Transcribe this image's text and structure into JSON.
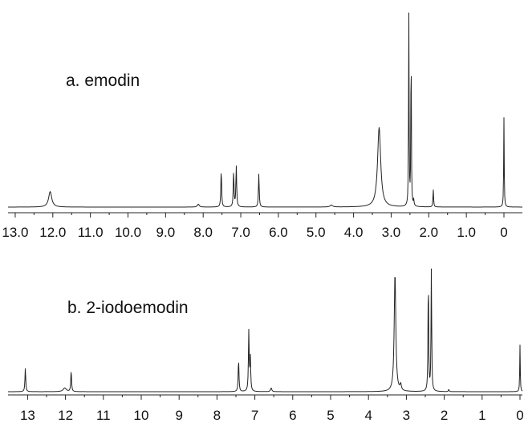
{
  "chart_data": [
    {
      "type": "line",
      "title": "a. emodin",
      "xlabel": "",
      "ylabel": "",
      "x_unit": "ppm",
      "xlim": [
        13.0,
        0.0
      ],
      "x_reversed": true,
      "tick_values": [
        13.0,
        12.0,
        11.0,
        10.0,
        9.0,
        8.0,
        7.0,
        6.0,
        5.0,
        4.0,
        3.0,
        2.0,
        1.0,
        0.0
      ],
      "tick_labels": [
        "13.0",
        "12.0",
        "11.0",
        "10.0",
        "9.0",
        "8.0",
        "7.0",
        "6.0",
        "5.0",
        "4.0",
        "3.0",
        "2.0",
        "1.0",
        "0"
      ],
      "grid": false,
      "ylim": [
        0,
        1.0
      ],
      "peaks": [
        {
          "x": 12.07,
          "y": 0.08,
          "width": 0.05
        },
        {
          "x": 8.13,
          "y": 0.015,
          "width": 0.03
        },
        {
          "x": 7.52,
          "y": 0.19,
          "width": 0.012
        },
        {
          "x": 7.19,
          "y": 0.18,
          "width": 0.012
        },
        {
          "x": 7.12,
          "y": 0.21,
          "width": 0.012
        },
        {
          "x": 6.52,
          "y": 0.17,
          "width": 0.012
        },
        {
          "x": 4.59,
          "y": 0.01,
          "width": 0.04
        },
        {
          "x": 3.32,
          "y": 0.41,
          "width": 0.05
        },
        {
          "x": 2.53,
          "y": 1.0,
          "width": 0.008
        },
        {
          "x": 2.47,
          "y": 0.88,
          "width": 0.008
        },
        {
          "x": 2.4,
          "y": 0.03,
          "width": 0.01
        },
        {
          "x": 1.88,
          "y": 0.09,
          "width": 0.01
        },
        {
          "x": 0.0,
          "y": 0.46,
          "width": 0.008
        }
      ]
    },
    {
      "type": "line",
      "title": "b. 2-iodoemodin",
      "xlabel": "",
      "ylabel": "",
      "x_unit": "ppm",
      "xlim": [
        13.2,
        0.0
      ],
      "x_reversed": true,
      "tick_values": [
        13,
        12,
        11,
        10,
        9,
        8,
        7,
        6,
        5,
        4,
        3,
        2,
        1,
        0
      ],
      "tick_labels": [
        "13",
        "12",
        "11",
        "10",
        "9",
        "8",
        "7",
        "6",
        "5",
        "4",
        "3",
        "2",
        "1",
        "0"
      ],
      "grid": false,
      "ylim": [
        0,
        1.0
      ],
      "peaks": [
        {
          "x": 13.06,
          "y": 0.19,
          "width": 0.012
        },
        {
          "x": 12.02,
          "y": 0.03,
          "width": 0.05
        },
        {
          "x": 11.85,
          "y": 0.17,
          "width": 0.012
        },
        {
          "x": 7.43,
          "y": 0.26,
          "width": 0.012
        },
        {
          "x": 7.16,
          "y": 0.49,
          "width": 0.012
        },
        {
          "x": 7.12,
          "y": 0.27,
          "width": 0.012
        },
        {
          "x": 6.57,
          "y": 0.03,
          "width": 0.02
        },
        {
          "x": 3.3,
          "y": 0.97,
          "width": 0.025
        },
        {
          "x": 3.15,
          "y": 0.05,
          "width": 0.02
        },
        {
          "x": 2.42,
          "y": 0.94,
          "width": 0.01
        },
        {
          "x": 2.34,
          "y": 1.0,
          "width": 0.01
        },
        {
          "x": 1.88,
          "y": 0.02,
          "width": 0.01
        },
        {
          "x": 0.0,
          "y": 0.38,
          "width": 0.008
        }
      ]
    }
  ]
}
